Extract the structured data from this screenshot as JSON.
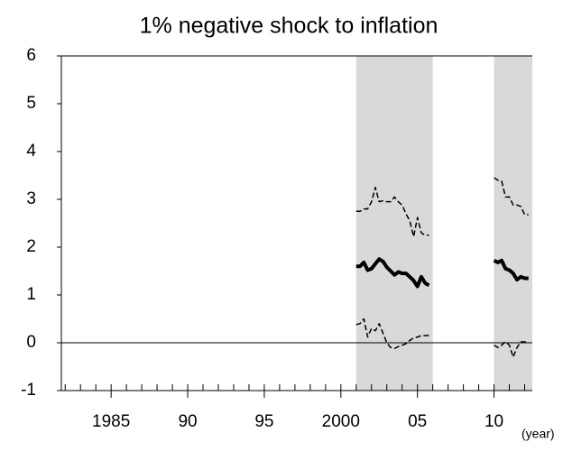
{
  "chart_data": {
    "type": "line",
    "title": "1% negative shock to inflation",
    "x_label": "(year)",
    "x": [
      2001.0,
      2001.25,
      2001.5,
      2001.75,
      2002.0,
      2002.25,
      2002.5,
      2002.75,
      2003.0,
      2003.25,
      2003.5,
      2003.75,
      2004.0,
      2004.25,
      2004.5,
      2004.75,
      2005.0,
      2005.25,
      2005.5,
      2005.75,
      2006.0,
      2006.25,
      2006.5,
      2006.75,
      2007.0,
      2007.25,
      2007.5,
      2007.75,
      2008.0,
      2008.25,
      2008.5,
      2008.75,
      2009.0,
      2009.25,
      2009.5,
      2009.75,
      2010.0,
      2010.25,
      2010.5,
      2010.75,
      2011.0,
      2011.25,
      2011.5,
      2011.75,
      2012.0,
      2012.25
    ],
    "series": [
      {
        "color": "#000000",
        "width": 4,
        "dash": false,
        "values": [
          1.6,
          1.6,
          1.68,
          1.52,
          1.55,
          1.65,
          1.75,
          1.7,
          1.58,
          1.5,
          1.42,
          1.48,
          1.45,
          1.45,
          1.38,
          1.3,
          1.18,
          1.38,
          1.25,
          1.2,
          null,
          null,
          null,
          null,
          null,
          null,
          null,
          null,
          null,
          null,
          null,
          null,
          null,
          null,
          null,
          null,
          1.72,
          1.68,
          1.72,
          1.55,
          1.52,
          1.45,
          1.32,
          1.38,
          1.35,
          1.35
        ]
      },
      {
        "color": "#000000",
        "width": 1.5,
        "dash": true,
        "values": [
          2.75,
          2.75,
          2.8,
          2.8,
          2.95,
          3.25,
          2.95,
          2.97,
          2.95,
          2.95,
          3.05,
          2.95,
          2.88,
          2.7,
          2.55,
          2.22,
          2.62,
          2.3,
          2.25,
          2.25,
          null,
          null,
          null,
          null,
          null,
          null,
          null,
          null,
          null,
          null,
          null,
          null,
          null,
          null,
          null,
          null,
          3.45,
          3.4,
          3.38,
          3.05,
          3.05,
          2.88,
          2.88,
          2.85,
          2.68,
          2.68
        ]
      },
      {
        "color": "#000000",
        "width": 1.5,
        "dash": true,
        "values": [
          0.38,
          0.4,
          0.5,
          0.12,
          0.3,
          0.25,
          0.4,
          0.2,
          0.0,
          -0.1,
          -0.12,
          -0.08,
          -0.05,
          -0.02,
          0.05,
          0.1,
          0.12,
          0.15,
          0.15,
          0.15,
          null,
          null,
          null,
          null,
          null,
          null,
          null,
          null,
          null,
          null,
          null,
          null,
          null,
          null,
          null,
          null,
          -0.05,
          -0.1,
          -0.05,
          0.02,
          -0.05,
          -0.3,
          -0.1,
          0.02,
          0.02,
          0.02
        ]
      }
    ],
    "shaded": [
      [
        2001,
        2006
      ],
      [
        2010,
        2012.5
      ]
    ],
    "shade_color": "#d9d9d9",
    "hline": 0,
    "xlim": [
      1981.75,
      2012.5
    ],
    "xticks": [
      {
        "value": 1985,
        "label": "1985"
      },
      {
        "value": 1990,
        "label": "90"
      },
      {
        "value": 1995,
        "label": "95"
      },
      {
        "value": 2000,
        "label": "2000"
      },
      {
        "value": 2005,
        "label": "05"
      },
      {
        "value": 2010,
        "label": "10"
      }
    ],
    "xminorticks": [
      1982,
      1983,
      1984,
      1985,
      1986,
      1987,
      1988,
      1989,
      1990,
      1991,
      1992,
      1993,
      1994,
      1995,
      1996,
      1997,
      1998,
      1999,
      2000,
      2001,
      2002,
      2003,
      2004,
      2005,
      2006,
      2007,
      2008,
      2009,
      2010,
      2011,
      2012
    ],
    "ylim": [
      -1,
      6
    ],
    "yticks": [
      -1,
      0,
      1,
      2,
      3,
      4,
      5,
      6
    ]
  }
}
